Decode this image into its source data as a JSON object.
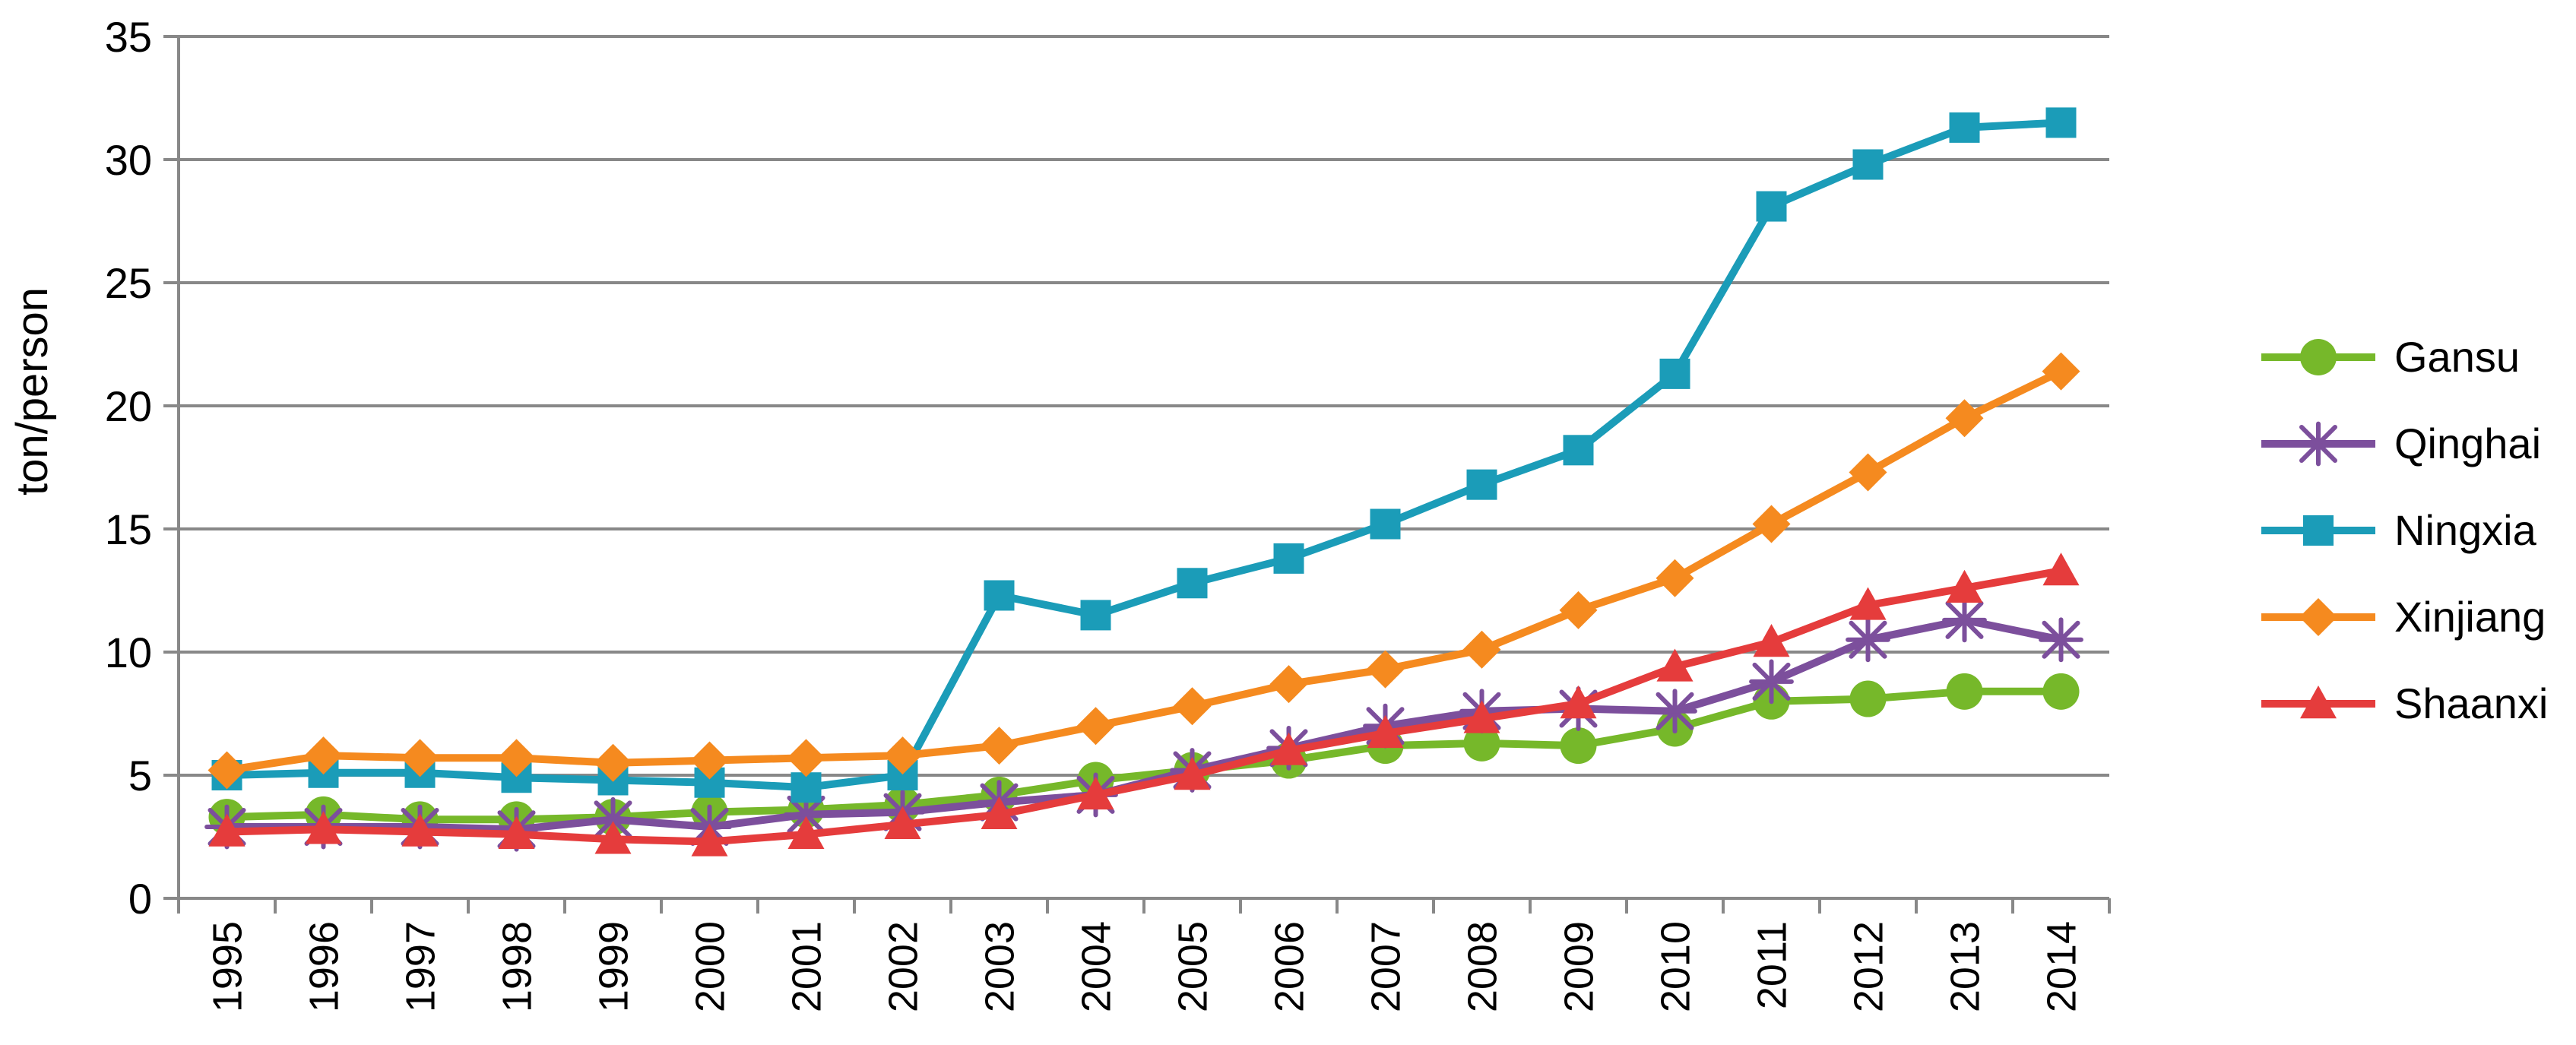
{
  "chart_data": {
    "type": "line",
    "title": "",
    "xlabel": "",
    "ylabel": "ton/person",
    "ylim": [
      0,
      35
    ],
    "yticks": [
      0,
      5,
      10,
      15,
      20,
      25,
      30,
      35
    ],
    "grid": true,
    "legend_position": "right",
    "x": [
      "1995",
      "1996",
      "1997",
      "1998",
      "1999",
      "2000",
      "2001",
      "2002",
      "2003",
      "2004",
      "2005",
      "2006",
      "2007",
      "2008",
      "2009",
      "2010",
      "2011",
      "2012",
      "2013",
      "2014"
    ],
    "series": [
      {
        "name": "Gansu",
        "color": "#76b82a",
        "marker": "circle",
        "values": [
          3.3,
          3.4,
          3.2,
          3.2,
          3.3,
          3.5,
          3.6,
          3.8,
          4.2,
          4.8,
          5.2,
          5.6,
          6.2,
          6.3,
          6.2,
          6.9,
          8.0,
          8.1,
          8.4,
          8.4
        ]
      },
      {
        "name": "Qinghai",
        "color": "#7c4f9c",
        "marker": "star",
        "values": [
          2.9,
          2.9,
          2.9,
          2.8,
          3.2,
          2.9,
          3.4,
          3.5,
          3.9,
          4.2,
          5.2,
          6.1,
          7.0,
          7.6,
          7.7,
          7.6,
          8.8,
          10.5,
          11.3,
          10.5
        ]
      },
      {
        "name": "Ningxia",
        "color": "#1b9cb8",
        "marker": "square",
        "values": [
          5.0,
          5.1,
          5.1,
          4.9,
          4.8,
          4.7,
          4.5,
          5.0,
          12.3,
          11.5,
          12.8,
          13.8,
          15.2,
          16.8,
          18.2,
          21.3,
          28.1,
          29.8,
          31.3,
          31.5
        ]
      },
      {
        "name": "Xinjiang",
        "color": "#f58a1f",
        "marker": "diamond",
        "values": [
          5.2,
          5.8,
          5.7,
          5.7,
          5.5,
          5.6,
          5.7,
          5.8,
          6.2,
          7.0,
          7.8,
          8.7,
          9.3,
          10.1,
          11.7,
          13.0,
          15.2,
          17.3,
          19.5,
          21.4
        ]
      },
      {
        "name": "Shaanxi",
        "color": "#e53c3c",
        "marker": "triangle",
        "values": [
          2.7,
          2.8,
          2.7,
          2.6,
          2.4,
          2.3,
          2.6,
          3.0,
          3.4,
          4.2,
          5.0,
          6.0,
          6.7,
          7.3,
          7.9,
          9.4,
          10.4,
          11.9,
          12.6,
          13.3
        ]
      }
    ]
  }
}
